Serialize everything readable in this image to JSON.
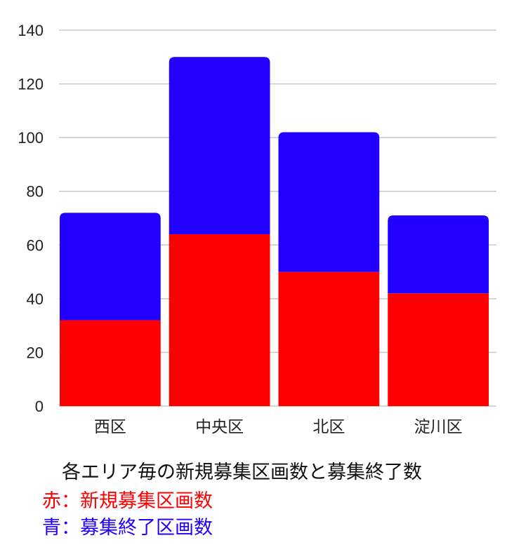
{
  "chart_data": {
    "type": "bar",
    "stacked": true,
    "categories": [
      "西区",
      "中央区",
      "北区",
      "淀川区"
    ],
    "series": [
      {
        "values": [
          32,
          64,
          50,
          42
        ],
        "color": "#ff0000"
      },
      {
        "values": [
          40,
          66,
          52,
          29
        ],
        "color": "#2200ff"
      }
    ],
    "totals": [
      72,
      130,
      102,
      71
    ],
    "ylim": [
      0,
      140
    ],
    "yticks": [
      0,
      20,
      40,
      60,
      80,
      100,
      120,
      140
    ],
    "grid": true,
    "gridColor": "#c8c8c8"
  },
  "captions": {
    "title": "各エリア毎の新規募集区画数と募集終了数",
    "red_line": "赤：新規募集区画数",
    "blue_line": "青：募集終了区画数",
    "red_color": "#ff0000",
    "blue_color": "#2200ff"
  }
}
